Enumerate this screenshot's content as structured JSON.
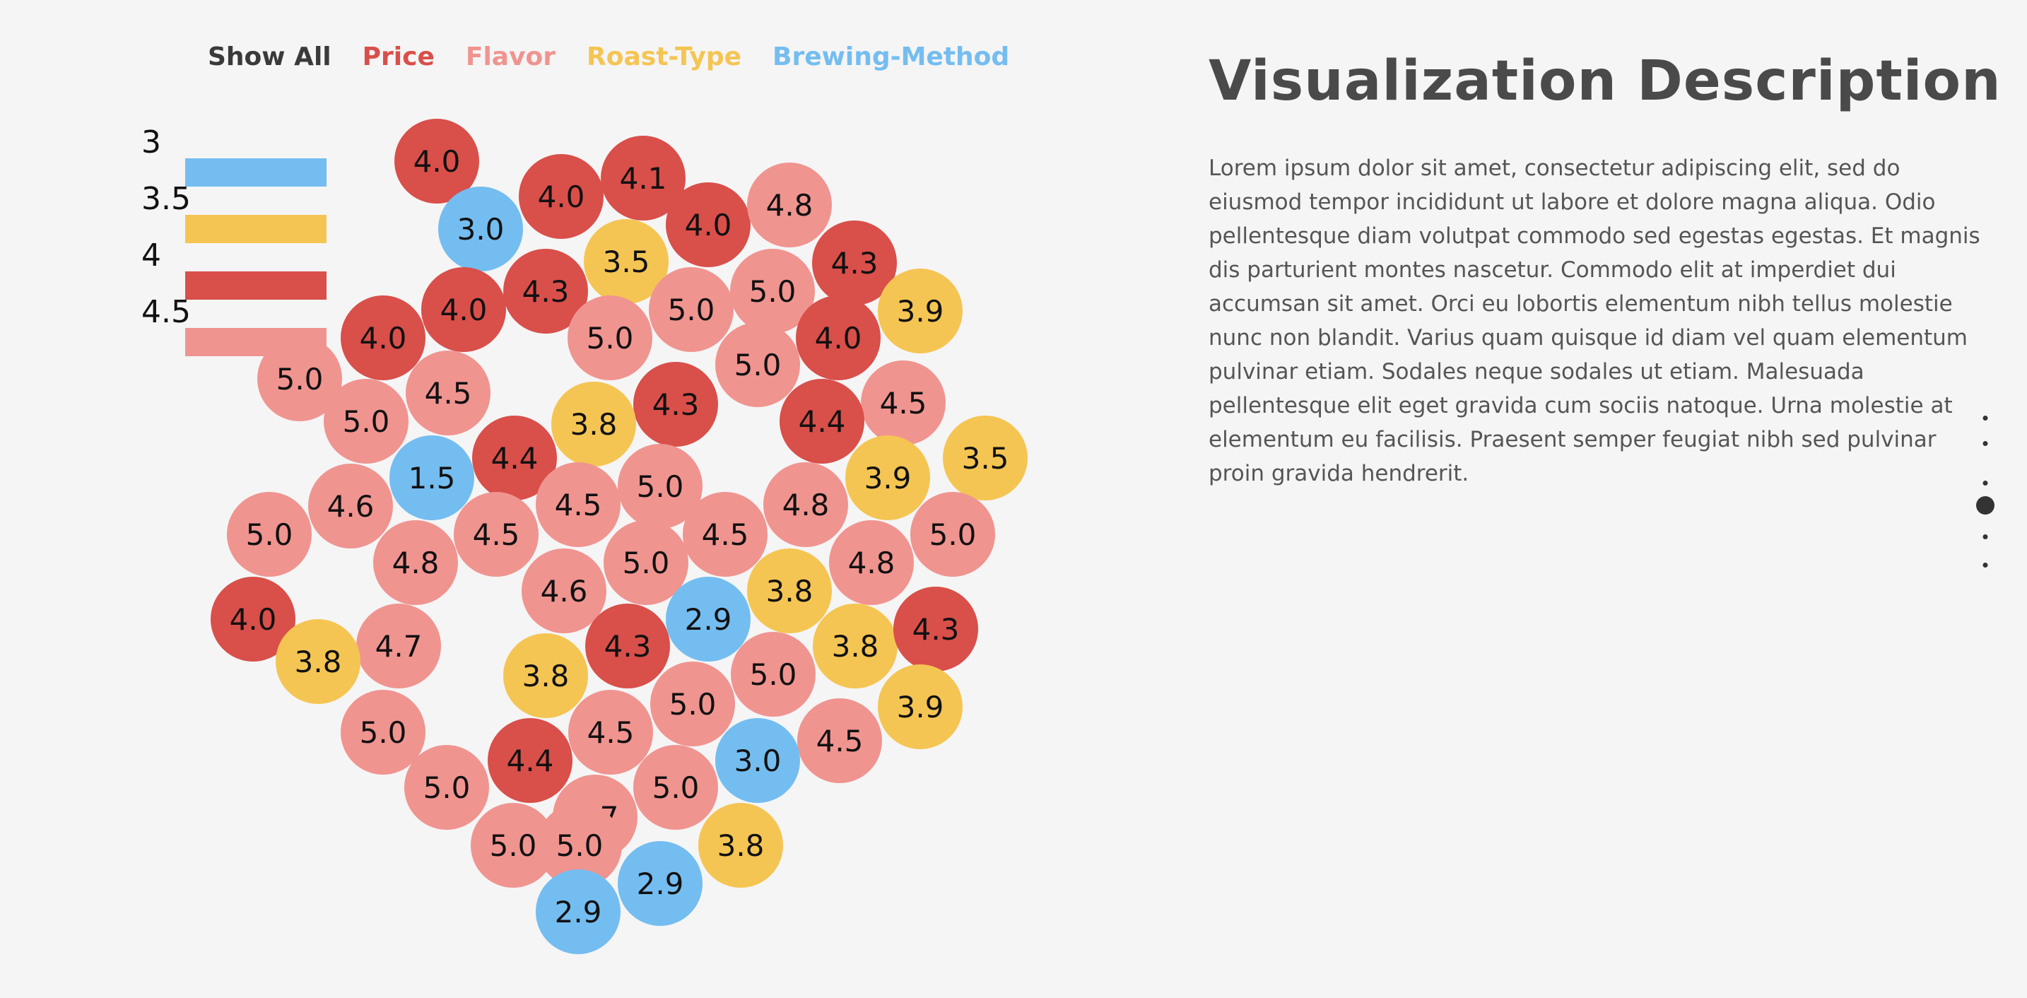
{
  "filters": [
    {
      "label": "Show All",
      "color": "#3a3a3a"
    },
    {
      "label": "Price",
      "color": "#d94f4a"
    },
    {
      "label": "Flavor",
      "color": "#f09490"
    },
    {
      "label": "Roast-Type",
      "color": "#f5c553"
    },
    {
      "label": "Brewing-Method",
      "color": "#74bdf0"
    }
  ],
  "legend": [
    {
      "label": "3",
      "color": "#74bdf0"
    },
    {
      "label": "3.5",
      "color": "#f5c553"
    },
    {
      "label": "4",
      "color": "#d94f4a"
    },
    {
      "label": "4.5",
      "color": "#f09490"
    }
  ],
  "description": {
    "title": "Visualization Description",
    "body": "Lorem ipsum dolor sit amet, consectetur adipiscing elit, sed do eiusmod tempor incididunt ut labore et dolore magna aliqua. Odio pellentesque diam volutpat commodo sed egestas egestas. Et magnis dis parturient montes nascetur. Commodo elit at imperdiet dui accumsan sit amet. Orci eu lobortis elementum nibh tellus molestie nunc non blandit. Varius quam quisque id diam vel quam elementum pulvinar etiam. Sodales neque sodales ut etiam. Malesuada pellentesque elit eget gravida cum sociis natoque. Urna molestie at elementum eu facilisis. Praesent semper feugiat nibh sed pulvinar proin gravida hendrerit."
  },
  "pager": {
    "count": 6,
    "active": 3
  },
  "chart_data": {
    "type": "bubble-pack",
    "title": "",
    "legend_position": "top-left",
    "values": [
      4.0,
      3.0,
      4.0,
      4.1,
      3.5,
      4.0,
      4.8,
      4.3,
      4.3,
      5.0,
      3.9,
      4.0,
      5.0,
      5.0,
      4.0,
      4.0,
      5.0,
      5.0,
      4.5,
      4.3,
      4.5,
      5.0,
      3.8,
      4.4,
      4.4,
      3.5,
      1.5,
      3.9,
      5.0,
      4.6,
      4.5,
      4.5,
      4.8,
      5.0,
      4.8,
      5.0,
      4.5,
      5.0,
      4.6,
      3.8,
      4.8,
      4.0,
      2.9,
      4.7,
      4.3,
      3.8,
      3.8,
      4.3,
      3.8,
      5.0,
      3.9,
      5.0,
      5.0,
      4.5,
      4.5,
      3.0,
      5.0,
      4.4,
      5.0,
      5.0,
      4.7,
      3.8,
      5.0,
      2.9,
      2.9
    ]
  }
}
